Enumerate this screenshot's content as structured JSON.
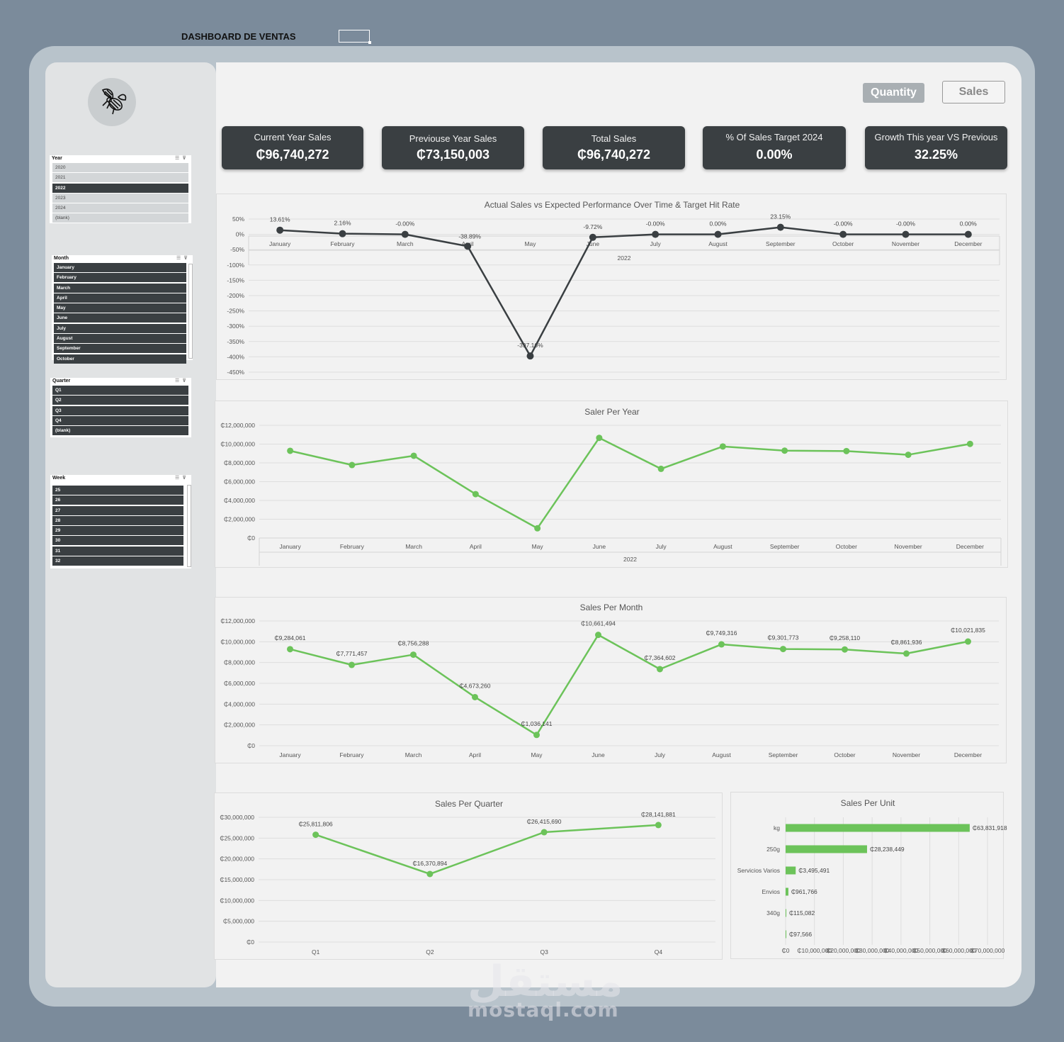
{
  "page_title": "DASHBOARD DE VENTAS",
  "toggles": {
    "quantity": "Quantity",
    "sales": "Sales"
  },
  "kpis": [
    {
      "label": "Current Year Sales",
      "value": "₵96,740,272"
    },
    {
      "label": "Previouse Year Sales",
      "value": "₵73,150,003"
    },
    {
      "label": "Total Sales",
      "value": "₵96,740,272"
    },
    {
      "label": "% Of Sales Target 2024",
      "value": "0.00%"
    },
    {
      "label": "Growth This year VS Previous",
      "value": "32.25%"
    }
  ],
  "slicers": {
    "year": {
      "title": "Year",
      "items": [
        "2020",
        "2021",
        "2022",
        "2023",
        "2024",
        "(blank)"
      ],
      "selected": [
        "2022"
      ]
    },
    "month": {
      "title": "Month",
      "items": [
        "January",
        "February",
        "March",
        "April",
        "May",
        "June",
        "July",
        "August",
        "September",
        "October"
      ]
    },
    "quarter": {
      "title": "Quarter",
      "items": [
        "Q1",
        "Q2",
        "Q3",
        "Q4",
        "(blank)"
      ]
    },
    "week": {
      "title": "Week",
      "items": [
        "25",
        "26",
        "27",
        "28",
        "29",
        "30",
        "31",
        "32"
      ]
    }
  },
  "watermark": {
    "arabic": "مستقل",
    "latin": "mostaql.com"
  },
  "colors": {
    "dark": "#3a3f42",
    "green": "#6cc35a",
    "panel": "#f2f2f2",
    "frame": "#b8c3cb",
    "background": "#7b8b9b"
  },
  "chart_data": [
    {
      "id": "target",
      "type": "line",
      "title": "Actual Sales vs Expected Performance Over Time & Target Hit Rate",
      "categories": [
        "January",
        "February",
        "March",
        "April",
        "May",
        "June",
        "July",
        "August",
        "September",
        "October",
        "November",
        "December"
      ],
      "group_label": "2022",
      "values": [
        13.61,
        2.16,
        -0.0,
        -38.89,
        -397.16,
        -9.72,
        -0.0,
        0.0,
        23.15,
        -0.0,
        -0.0,
        0.0
      ],
      "labels": [
        "13.61%",
        "2.16%",
        "-0.00%",
        "-38.89%",
        "-397.16%",
        "-9.72%",
        "-0.00%",
        "0.00%",
        "23.15%",
        "-0.00%",
        "-0.00%",
        "0.00%"
      ],
      "yticks": [
        "50%",
        "0%",
        "-50%",
        "-100%",
        "-150%",
        "-200%",
        "-250%",
        "-300%",
        "-350%",
        "-400%",
        "-450%"
      ],
      "ylim": [
        -450,
        50
      ],
      "grid": true,
      "color": "#3a3f42"
    },
    {
      "id": "year",
      "type": "line",
      "title": "Saler Per Year",
      "categories": [
        "January",
        "February",
        "March",
        "April",
        "May",
        "June",
        "July",
        "August",
        "September",
        "October",
        "November",
        "December"
      ],
      "group_label": "2022",
      "values": [
        9284061,
        7771457,
        8756288,
        4673260,
        1036141,
        10661494,
        7364602,
        9749316,
        9301773,
        9258110,
        8861936,
        10021835
      ],
      "yticks": [
        "₵12,000,000",
        "₵10,000,000",
        "₵8,000,000",
        "₵6,000,000",
        "₵4,000,000",
        "₵2,000,000",
        "₵0"
      ],
      "ylim": [
        0,
        12000000
      ],
      "grid": true,
      "color": "#6cc35a"
    },
    {
      "id": "month",
      "type": "line",
      "title": "Sales Per Month",
      "categories": [
        "January",
        "February",
        "March",
        "April",
        "May",
        "June",
        "July",
        "August",
        "September",
        "October",
        "November",
        "December"
      ],
      "values": [
        9284061,
        7771457,
        8756288,
        4673260,
        1036141,
        10661494,
        7364602,
        9749316,
        9301773,
        9258110,
        8861936,
        10021835
      ],
      "labels": [
        "₵9,284,061",
        "₵7,771,457",
        "₵8,756,288",
        "₵4,673,260",
        "₵1,036,141",
        "₵10,661,494",
        "₵7,364,602",
        "₵9,749,316",
        "₵9,301,773",
        "₵9,258,110",
        "₵8,861,936",
        "₵10,021,835"
      ],
      "yticks": [
        "₵12,000,000",
        "₵10,000,000",
        "₵8,000,000",
        "₵6,000,000",
        "₵4,000,000",
        "₵2,000,000",
        "₵0"
      ],
      "ylim": [
        0,
        12000000
      ],
      "grid": true,
      "color": "#6cc35a"
    },
    {
      "id": "quarter",
      "type": "line",
      "title": "Sales Per Quarter",
      "categories": [
        "Q1",
        "Q2",
        "Q3",
        "Q4"
      ],
      "values": [
        25811806,
        16370894,
        26415690,
        28141881
      ],
      "labels": [
        "₵25,811,806",
        "₵16,370,894",
        "₵26,415,690",
        "₵28,141,881"
      ],
      "yticks": [
        "₵30,000,000",
        "₵25,000,000",
        "₵20,000,000",
        "₵15,000,000",
        "₵10,000,000",
        "₵5,000,000",
        "₵0"
      ],
      "ylim": [
        0,
        30000000
      ],
      "grid": true,
      "color": "#6cc35a"
    },
    {
      "id": "unit",
      "type": "bar",
      "orientation": "horizontal",
      "title": "Sales Per Unit",
      "categories": [
        "kg",
        "250g",
        "Servicios Varios",
        "Envios",
        "340g",
        ""
      ],
      "values": [
        63831918,
        28238449,
        3495491,
        961766,
        115082,
        97566
      ],
      "labels": [
        "₵63,831,918",
        "₵28,238,449",
        "₵3,495,491",
        "₵961,766",
        "₵115,082",
        "₵97,566"
      ],
      "xticks": [
        "₵0",
        "₵10,000,000",
        "₵20,000,000",
        "₵30,000,000",
        "₵40,000,000",
        "₵50,000,000",
        "₵60,000,000",
        "₵70,000,000"
      ],
      "xlim": [
        0,
        70000000
      ],
      "grid": true,
      "color": "#6cc35a"
    }
  ]
}
